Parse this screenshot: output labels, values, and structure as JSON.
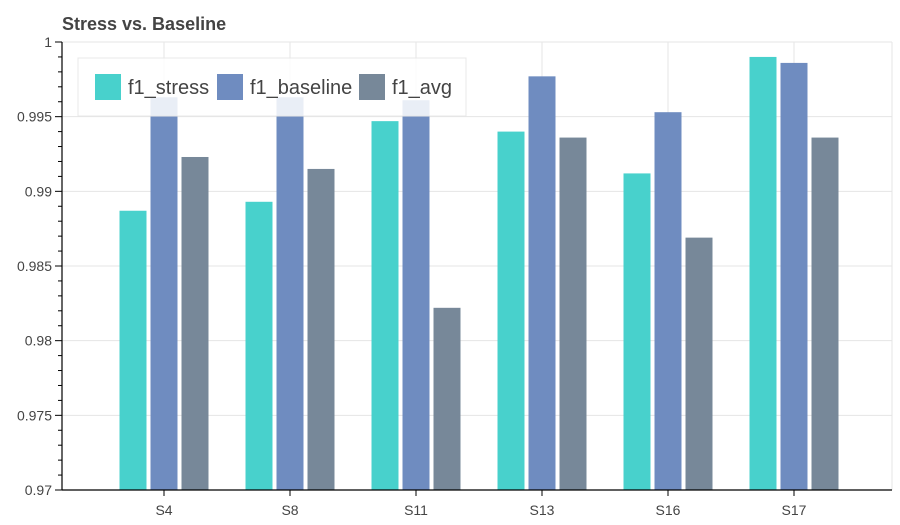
{
  "chart_data": {
    "type": "bar",
    "title": "Stress vs. Baseline",
    "xlabel": "",
    "ylabel": "",
    "categories": [
      "S4",
      "S8",
      "S11",
      "S13",
      "S16",
      "S17"
    ],
    "series": [
      {
        "name": "f1_stress",
        "color": "#48D1CC",
        "values": [
          0.9887,
          0.9893,
          0.9947,
          0.994,
          0.9912,
          0.999
        ]
      },
      {
        "name": "f1_baseline",
        "color": "#6F8CC0",
        "values": [
          0.9963,
          0.9963,
          0.9961,
          0.9977,
          0.9953,
          0.9986
        ]
      },
      {
        "name": "f1_avg",
        "color": "#778899",
        "values": [
          0.9923,
          0.9915,
          0.9822,
          0.9936,
          0.9869,
          0.9936
        ]
      }
    ],
    "ylim": [
      0.97,
      1.0
    ],
    "yticks": [
      0.97,
      0.975,
      0.98,
      0.985,
      0.99,
      0.995,
      1.0
    ],
    "ytick_labels": [
      "0.97",
      "0.975",
      "0.98",
      "0.985",
      "0.99",
      "0.995",
      "1"
    ],
    "grid": true,
    "legend_position": "top-left"
  }
}
